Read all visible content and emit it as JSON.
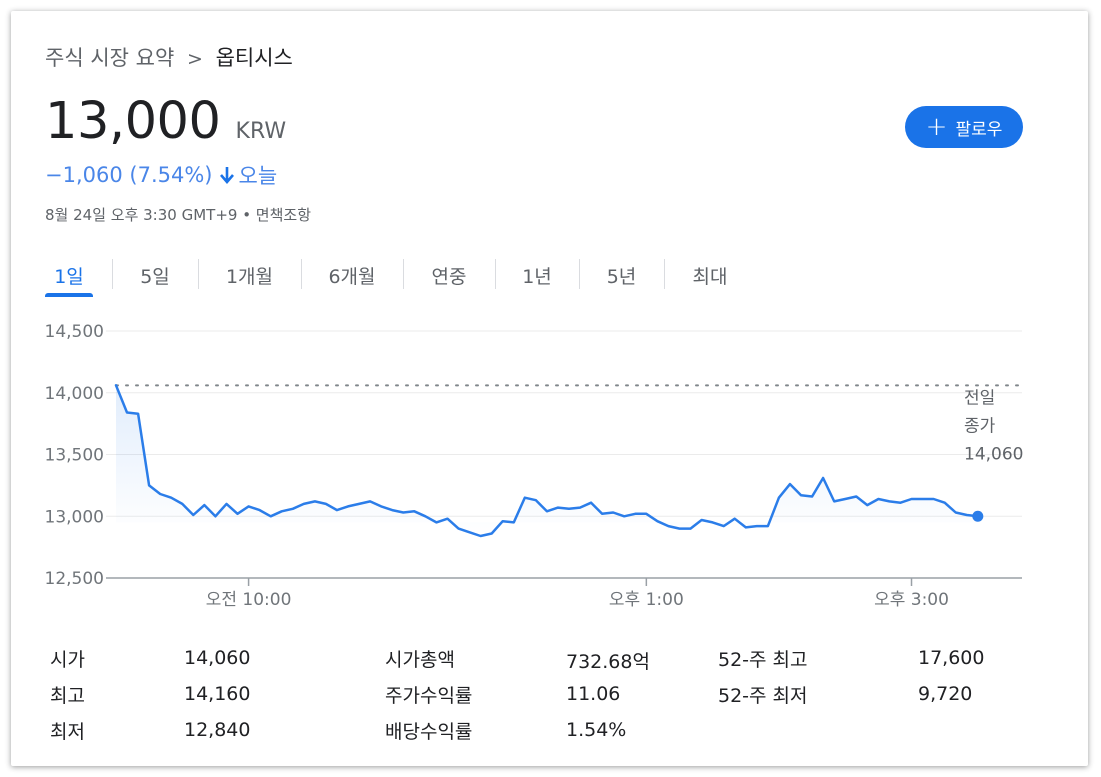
{
  "breadcrumb": {
    "parent": "주식 시장 요약",
    "separator": ">",
    "current": "옵티시스"
  },
  "quote": {
    "price": "13,000",
    "currency": "KRW",
    "change": "−1,060 (7.54%)",
    "change_period": "오늘",
    "timestamp": "8월 24일 오후 3:30 GMT+9 • 면책조항"
  },
  "follow_button": {
    "label": "팔로우"
  },
  "tabs": [
    {
      "label": "1일",
      "active": true
    },
    {
      "label": "5일"
    },
    {
      "label": "1개월"
    },
    {
      "label": "6개월"
    },
    {
      "label": "연중"
    },
    {
      "label": "1년"
    },
    {
      "label": "5년"
    },
    {
      "label": "최대"
    }
  ],
  "colors": {
    "accent": "#1a73e8",
    "line": "#2b7de9",
    "negative": "#4a86e8",
    "grid": "#ebebeb"
  },
  "chart_data": {
    "type": "line",
    "y_ticks": [
      "14,500",
      "14,000",
      "13,500",
      "13,000",
      "12,500"
    ],
    "ylim": [
      12500,
      14500
    ],
    "x_ticks": [
      {
        "label": "오전 10:00",
        "x": 60
      },
      {
        "label": "오후 1:00",
        "x": 240
      },
      {
        "label": "오후 3:00",
        "x": 360
      }
    ],
    "xlim": [
      0,
      410
    ],
    "x_end": 390,
    "previous_close": {
      "value": 14060,
      "label_lines": [
        "전일",
        "종가",
        "14,060"
      ]
    },
    "grid": true,
    "series": [
      {
        "values": [
          14060,
          13840,
          13830,
          13250,
          13180,
          13150,
          13100,
          13010,
          13090,
          13000,
          13100,
          13020,
          13080,
          13050,
          13000,
          13040,
          13060,
          13100,
          13120,
          13100,
          13050,
          13080,
          13100,
          13120,
          13080,
          13050,
          13030,
          13040,
          13000,
          12950,
          12980,
          12900,
          12870,
          12840,
          12860,
          12960,
          12950,
          13150,
          13130,
          13040,
          13070,
          13060,
          13070,
          13110,
          13020,
          13030,
          13000,
          13020,
          13020,
          12960,
          12920,
          12900,
          12900,
          12970,
          12950,
          12920,
          12980,
          12910,
          12920,
          12920,
          13150,
          13260,
          13170,
          13160,
          13310,
          13120,
          13140,
          13160,
          13090,
          13140,
          13120,
          13110,
          13140,
          13140,
          13140,
          13110,
          13030,
          13010,
          13000
        ]
      }
    ]
  },
  "stats": [
    [
      {
        "label": "시가",
        "value": "14,060"
      },
      {
        "label": "시가총액",
        "value": "732.68억"
      },
      {
        "label": "52-주 최고",
        "value": "17,600"
      }
    ],
    [
      {
        "label": "최고",
        "value": "14,160"
      },
      {
        "label": "주가수익률",
        "value": "11.06"
      },
      {
        "label": "52-주 최저",
        "value": "9,720"
      }
    ],
    [
      {
        "label": "최저",
        "value": "12,840"
      },
      {
        "label": "배당수익률",
        "value": "1.54%"
      },
      {
        "label": "",
        "value": ""
      }
    ]
  ]
}
